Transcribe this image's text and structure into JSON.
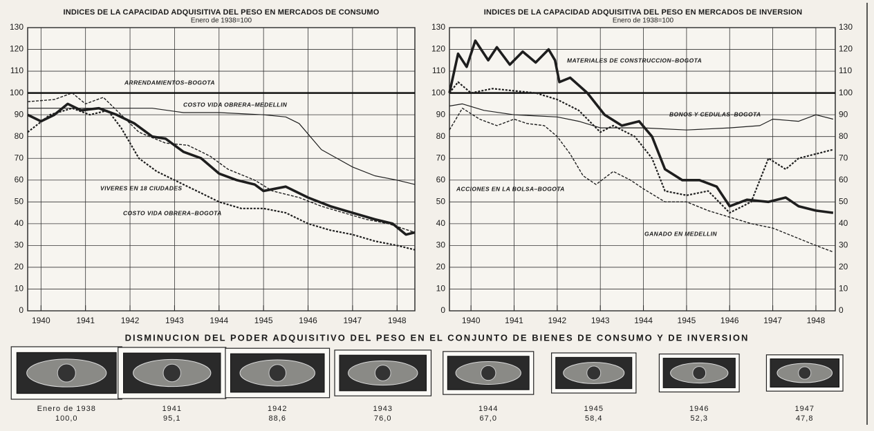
{
  "chart_data": [
    {
      "type": "line",
      "title": "INDICES DE LA CAPACIDAD ADQUISITIVA DEL PESO EN MERCADOS DE CONSUMO",
      "subtitle": "Enero de 1938=100",
      "xlim": [
        1939.7,
        1948.4
      ],
      "xticks": [
        1940,
        1941,
        1942,
        1943,
        1944,
        1945,
        1946,
        1947,
        1948
      ],
      "ylim": [
        0,
        130
      ],
      "yticks": [
        0,
        10,
        20,
        30,
        40,
        50,
        60,
        70,
        80,
        90,
        100,
        110,
        120,
        130
      ],
      "grid": true,
      "y_labels": "left",
      "reference_line": 100,
      "series": [
        {
          "name": "ARRENDAMIENTOS–BOGOTA",
          "color": "#1e1e1e",
          "style": "thin",
          "x": [
            1939.7,
            1940.5,
            1941.5,
            1942.5,
            1943.2,
            1944,
            1945,
            1945.5,
            1945.8,
            1946.3,
            1947,
            1947.5,
            1948,
            1948.4
          ],
          "values": [
            93,
            93,
            93,
            93,
            91,
            91,
            90,
            89,
            86,
            74,
            66,
            62,
            60,
            58
          ]
        },
        {
          "name": "COSTO VIDA OBRERA–MEDELLIN",
          "color": "#1e1e1e",
          "style": "dashed",
          "x": [
            1939.7,
            1940.3,
            1940.7,
            1941,
            1941.4,
            1941.8,
            1942.2,
            1942.8,
            1943.3,
            1943.8,
            1944.2,
            1944.8,
            1945.2,
            1945.8,
            1946.3,
            1946.8,
            1947.3,
            1947.8,
            1948.4
          ],
          "values": [
            96,
            97,
            100,
            95,
            98,
            90,
            82,
            77,
            76,
            71,
            65,
            60,
            55,
            52,
            48,
            45,
            42,
            40,
            36
          ]
        },
        {
          "name": "VIVERES EN 18 CIUDADES",
          "color": "#1e1e1e",
          "style": "thick",
          "x": [
            1939.7,
            1940,
            1940.3,
            1940.6,
            1940.9,
            1941.3,
            1941.7,
            1942.1,
            1942.5,
            1942.8,
            1943.2,
            1943.6,
            1944,
            1944.4,
            1944.8,
            1945,
            1945.5,
            1946,
            1946.5,
            1947,
            1947.5,
            1947.9,
            1948.2,
            1948.4
          ],
          "values": [
            90,
            87,
            90,
            95,
            92,
            93,
            90,
            86,
            80,
            79,
            73,
            70,
            63,
            60,
            58,
            55,
            57,
            52,
            48,
            45,
            42,
            40,
            35,
            36
          ]
        },
        {
          "name": "COSTO VIDA OBRERA–BOGOTA",
          "color": "#1e1e1e",
          "style": "dashed-thick",
          "x": [
            1939.7,
            1940.2,
            1940.7,
            1941.1,
            1941.5,
            1941.8,
            1942.2,
            1942.6,
            1943,
            1943.5,
            1944,
            1944.5,
            1945,
            1945.5,
            1946,
            1946.5,
            1947,
            1947.5,
            1948,
            1948.4
          ],
          "values": [
            82,
            90,
            93,
            90,
            92,
            84,
            70,
            64,
            60,
            55,
            50,
            47,
            47,
            45,
            40,
            37,
            35,
            32,
            30,
            28
          ]
        }
      ]
    },
    {
      "type": "line",
      "title": "INDICES DE LA CAPACIDAD ADQUISITIVA DEL PESO EN MERCADOS DE INVERSION",
      "subtitle": "Enero de 1938=100",
      "xlim": [
        1939.5,
        1948.45
      ],
      "xticks": [
        1940,
        1941,
        1942,
        1943,
        1944,
        1945,
        1946,
        1947,
        1948
      ],
      "ylim": [
        0,
        130
      ],
      "yticks": [
        0,
        10,
        20,
        30,
        40,
        50,
        60,
        70,
        80,
        90,
        100,
        110,
        120,
        130
      ],
      "grid": true,
      "y_labels": "both",
      "reference_line": 100,
      "series": [
        {
          "name": "MATERIALES DE CONSTRUCCION–BOGOTA",
          "color": "#1e1e1e",
          "style": "thick",
          "x": [
            1939.5,
            1939.7,
            1939.9,
            1940.1,
            1940.4,
            1940.6,
            1940.9,
            1941.2,
            1941.5,
            1941.8,
            1941.95,
            1942.05,
            1942.3,
            1942.7,
            1943.1,
            1943.5,
            1943.9,
            1944.2,
            1944.5,
            1944.9,
            1945.3,
            1945.7,
            1946,
            1946.4,
            1946.9,
            1947.3,
            1947.6,
            1948,
            1948.4
          ],
          "values": [
            100,
            118,
            112,
            124,
            115,
            121,
            113,
            119,
            114,
            120,
            115,
            105,
            107,
            100,
            90,
            85,
            87,
            80,
            65,
            60,
            60,
            57,
            48,
            51,
            50,
            52,
            48,
            46,
            45
          ]
        },
        {
          "name": "BONOS Y CEDULAS–BOGOTA",
          "color": "#1e1e1e",
          "style": "thin",
          "x": [
            1939.5,
            1939.8,
            1940.3,
            1941,
            1942,
            1942.5,
            1943,
            1944,
            1945,
            1946,
            1946.7,
            1947,
            1947.6,
            1948,
            1948.4
          ],
          "values": [
            94,
            95,
            92,
            90,
            89,
            87,
            84,
            84,
            83,
            84,
            85,
            88,
            87,
            90,
            88
          ]
        },
        {
          "name": "ACCIONES EN LA BOLSA–BOGOTA",
          "color": "#1e1e1e",
          "style": "dashed",
          "x": [
            1939.5,
            1939.8,
            1940.2,
            1940.6,
            1941,
            1941.3,
            1941.7,
            1942,
            1942.3,
            1942.6,
            1942.9,
            1943.3,
            1943.7,
            1944,
            1944.5,
            1945,
            1945.5,
            1946,
            1946.5,
            1947,
            1947.5,
            1948,
            1948.4
          ],
          "values": [
            83,
            93,
            88,
            85,
            88,
            86,
            85,
            80,
            72,
            62,
            58,
            64,
            60,
            56,
            50,
            50,
            46,
            43,
            40,
            38,
            34,
            30,
            27
          ]
        },
        {
          "name": "GANADO EN MEDELLIN",
          "color": "#1e1e1e",
          "style": "dashed-thick",
          "x": [
            1939.5,
            1939.7,
            1940,
            1940.5,
            1941,
            1941.5,
            1942,
            1942.5,
            1943,
            1943.3,
            1943.8,
            1944.2,
            1944.5,
            1945,
            1945.5,
            1946,
            1946.5,
            1946.9,
            1947.3,
            1947.6,
            1948,
            1948.4
          ],
          "values": [
            100,
            105,
            100,
            102,
            101,
            100,
            97,
            92,
            82,
            85,
            80,
            70,
            55,
            53,
            55,
            45,
            50,
            70,
            65,
            70,
            72,
            74
          ]
        }
      ]
    },
    {
      "type": "pictograph",
      "title": "DISMINUCION DEL PODER ADQUISITIVO DEL PESO EN EL CONJUNTO DE BIENES DE CONSUMO Y DE INVERSION",
      "categories": [
        "Enero de 1938",
        "1941",
        "1942",
        "1943",
        "1944",
        "1945",
        "1946",
        "1947"
      ],
      "values": [
        100,
        95.1,
        88.6,
        76,
        67,
        58.4,
        52.3,
        47.8
      ],
      "value_labels": [
        "100,0",
        "95,1",
        "88,6",
        "76,0",
        "67,0",
        "58,4",
        "52,3",
        "47,8"
      ],
      "color": "#2a2a2a"
    }
  ]
}
